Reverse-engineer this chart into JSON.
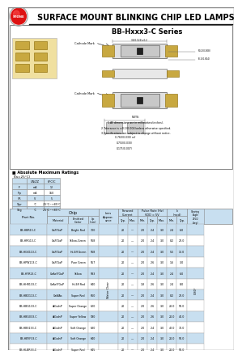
{
  "title": "SURFACE MOUNT BLINKING CHIP LED LAMPS",
  "series_title": "BB-Hxxx3-C Series",
  "logo_text": "STONE",
  "bg_color": "#ffffff",
  "light_blue": "#c8dff0",
  "border_color": "#888888",
  "abs_ratings_title": "Absolute Maximum Ratings",
  "abs_ratings_subtitle": "(Ta=25°C)",
  "abs_ratings_headers": [
    "",
    "UN/ZZ",
    "6PC/C"
  ],
  "abs_ratings_rows": [
    [
      "IF",
      "mA",
      "12"
    ],
    [
      "IFp",
      "mA",
      "150"
    ],
    [
      "VR",
      "V",
      "5"
    ],
    [
      "Topr",
      "°C",
      "-25°C~+85°C"
    ],
    [
      "Tstg",
      "°C",
      "-25°C~+85°C"
    ]
  ],
  "parts": [
    [
      "BB-HBR13-C",
      "GaP/GaP",
      "Bright Red",
      "700",
      "20",
      "—",
      "2.0",
      "2.4",
      "3.0",
      "2.4",
      "6.0"
    ],
    [
      "BB-HRG13-C",
      "GaP/GaP",
      "Yellow-Green",
      "568",
      "20",
      "—",
      "2.0",
      "2.4",
      "3.0",
      "8.2",
      "23.0"
    ],
    [
      "BB-HGX113-C",
      "GaP/GaP",
      "Hi-Eff Green",
      "568",
      "20",
      "—",
      "2.0",
      "2.4",
      "3.0",
      "5.5",
      "12.0"
    ],
    [
      "BB-HPW113-C",
      "GaP/GaP",
      "Pure Green",
      "557",
      "20",
      "—",
      "2.0",
      "2.6",
      "3.0",
      "1.6",
      "3.0"
    ],
    [
      "BB-HYR13-C",
      "GaAsP/GaP",
      "Yellow",
      "583",
      "20",
      "—",
      "2.0",
      "2.4",
      "3.0",
      "2.4",
      "6.0"
    ],
    [
      "BB-HHR133-C",
      "GaAsP/GaP",
      "Hi-Eff Red",
      "640",
      "20",
      "—",
      "1.8",
      "2.6",
      "3.0",
      "2.4",
      "8.0"
    ],
    [
      "BB-HBD113-C",
      "GaAlAs",
      "Super Red",
      "660",
      "20",
      "—",
      "2.0",
      "2.4",
      "3.0",
      "8.2",
      "23.0"
    ],
    [
      "BB-HBG133-C",
      "AlGaInP",
      "Super Orange",
      "620",
      "20",
      "—",
      "2.0",
      "2.6",
      "3.0",
      "20.0",
      "50.0"
    ],
    [
      "BB-HBG033-C",
      "AlGaInP",
      "Super Yellow",
      "590",
      "20",
      "—",
      "2.0",
      "2.6",
      "3.0",
      "20.0",
      "40.0"
    ],
    [
      "BB-HBS133-C",
      "AlGaInP",
      "Soft Orange",
      "630",
      "20",
      "—",
      "2.0",
      "2.4",
      "3.0",
      "42.0",
      "70.0"
    ],
    [
      "BB-HBYF33-C",
      "AlGaInP",
      "Soft Orange",
      "640",
      "20",
      "—",
      "2.0",
      "2.4",
      "3.0",
      "20.0",
      "50.0"
    ],
    [
      "BB-HLBR33-C",
      "AlGaInP",
      "Super Red",
      "645",
      "20",
      "—",
      "2.0",
      "2.4",
      "3.0",
      "20.0",
      "50.0"
    ]
  ],
  "note_lines": [
    "NOTE:",
    "1.All dimensions are in millimeters(inches).",
    "2.Tolerance is ±0.1(0.004)unless otherwise specified.",
    "3.Specifications are subject to change without notice."
  ]
}
